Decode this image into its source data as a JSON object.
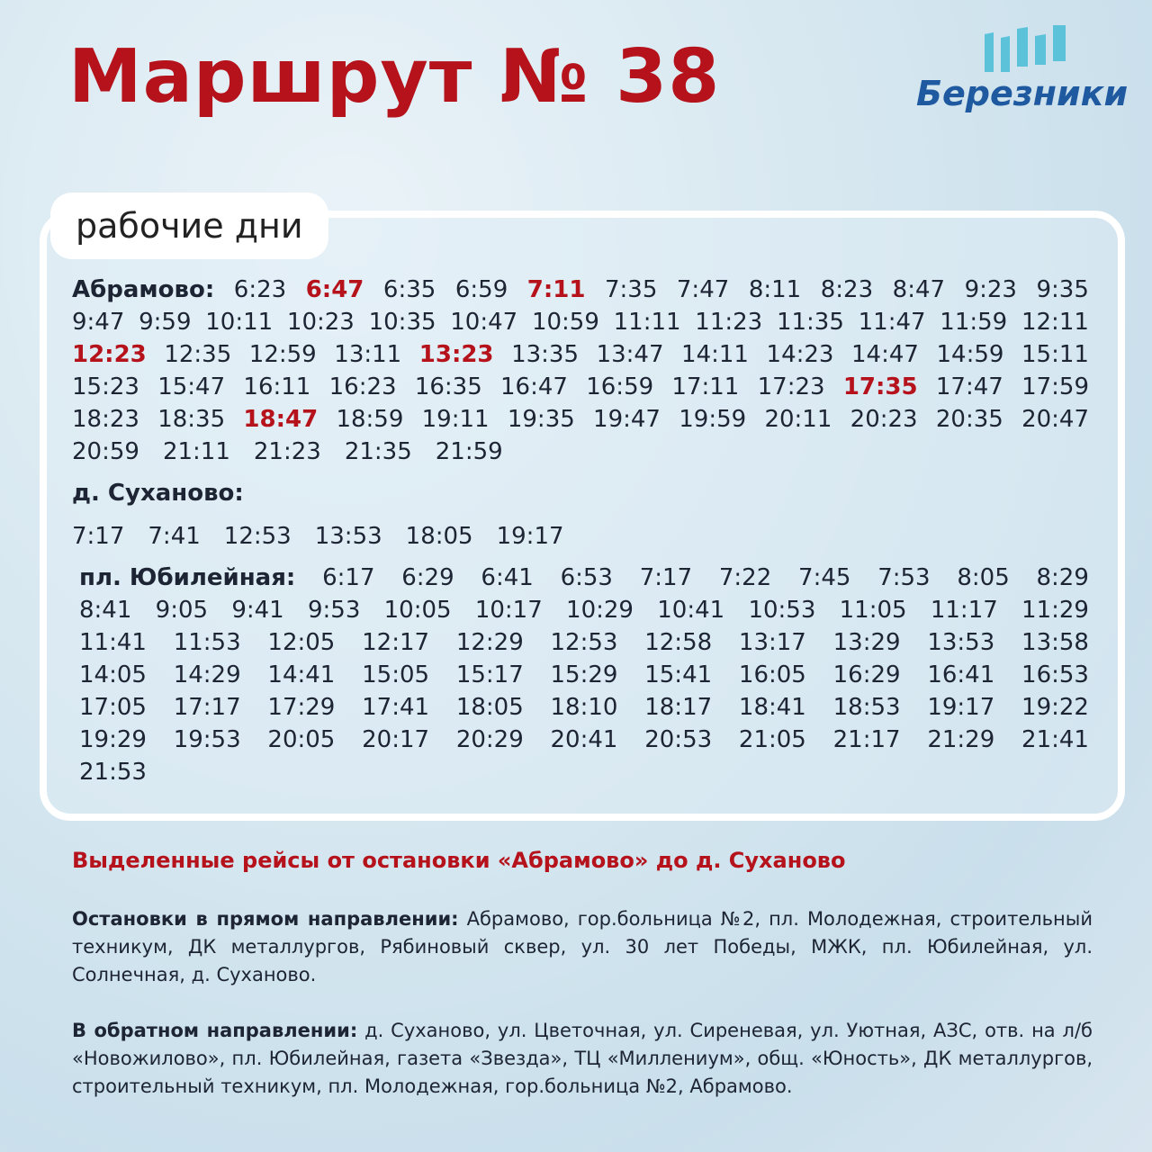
{
  "header": {
    "title": "Маршрут № 38",
    "logo": "Березники"
  },
  "schedule": {
    "label": "рабочие дни",
    "stops": [
      {
        "name": "Абрамово:",
        "rows": [
          [
            "6:23",
            {
              "time": "6:47",
              "highlight": true
            },
            "6:35",
            "6:59",
            {
              "time": "7:11",
              "highlight": true
            },
            "7:35",
            "7:47",
            "8:11",
            "8:23",
            "8:47",
            "9:23",
            "9:35"
          ],
          [
            "9:47",
            "9:59",
            "10:11",
            "10:23",
            "10:35",
            "10:47",
            "10:59",
            "11:11",
            "11:23",
            "11:35",
            "11:47",
            "11:59",
            "12:11"
          ],
          [
            {
              "time": "12:23",
              "highlight": true
            },
            "12:35",
            "12:59",
            "13:11",
            {
              "time": "13:23",
              "highlight": true
            },
            "13:35",
            "13:47",
            "14:11",
            "14:23",
            "14:47",
            "14:59",
            "15:11"
          ],
          [
            "15:23",
            "15:47",
            "16:11",
            "16:23",
            "16:35",
            "16:47",
            "16:59",
            "17:11",
            "17:23",
            {
              "time": "17:35",
              "highlight": true
            },
            "17:47",
            "17:59"
          ],
          [
            "18:23",
            "18:35",
            {
              "time": "18:47",
              "highlight": true
            },
            "18:59",
            "19:11",
            "19:35",
            "19:47",
            "19:59",
            "20:11",
            "20:23",
            "20:35",
            "20:47"
          ],
          [
            "20:59",
            "21:11",
            "21:23",
            "21:35",
            "21:59"
          ]
        ]
      },
      {
        "name": "д. Суханово:",
        "rows": [
          [
            "7:17",
            "7:41",
            "12:53",
            "13:53",
            "18:05",
            "19:17"
          ]
        ]
      },
      {
        "name": "пл.  Юбилейная:",
        "rows": [
          [
            "6:17",
            "6:29",
            "6:41",
            "6:53",
            "7:17",
            "7:22",
            "7:45",
            "7:53",
            "8:05",
            "8:29"
          ],
          [
            "8:41",
            "9:05",
            "9:41",
            "9:53",
            "10:05",
            "10:17",
            "10:29",
            "10:41",
            "10:53",
            "11:05",
            "11:17",
            "11:29"
          ],
          [
            "11:41",
            "11:53",
            "12:05",
            "12:17",
            "12:29",
            "12:53",
            "12:58",
            "13:17",
            "13:29",
            "13:53",
            "13:58"
          ],
          [
            "14:05",
            "14:29",
            "14:41",
            "15:05",
            "15:17",
            "15:29",
            "15:41",
            "16:05",
            "16:29",
            "16:41",
            "16:53"
          ],
          [
            "17:05",
            "17:17",
            "17:29",
            "17:41",
            "18:05",
            "18:10",
            "18:17",
            "18:41",
            "18:53",
            "19:17",
            "19:22"
          ],
          [
            "19:29",
            "19:53",
            "20:05",
            "20:17",
            "20:29",
            "20:41",
            "20:53",
            "21:05",
            "21:17",
            "21:29",
            "21:41"
          ],
          [
            "21:53"
          ]
        ]
      }
    ]
  },
  "note": "Выделенные рейсы от остановки «Абрамово» до д. Суханово",
  "directions": [
    {
      "label": "Остановки в прямом направлении:",
      "text": "Абрамово, гор.больница №2, пл. Молодежная, строительный техникум, ДК металлургов, Рябиновый сквер, ул. 30 лет Победы, МЖК, пл. Юбилейная, ул. Солнечная, д. Суханово."
    },
    {
      "label": "В обратном направлении:",
      "text": "д. Суханово, ул. Цветочная, ул. Сиреневая, ул. Уютная, АЗС, отв. на л/б «Новожилово», пл. Юбилейная, газета «Звезда», ТЦ «Миллениум», общ. «Юность», ДК металлургов, строительный техникум, пл. Молодежная, гор.больница №2, Абрамово."
    }
  ]
}
